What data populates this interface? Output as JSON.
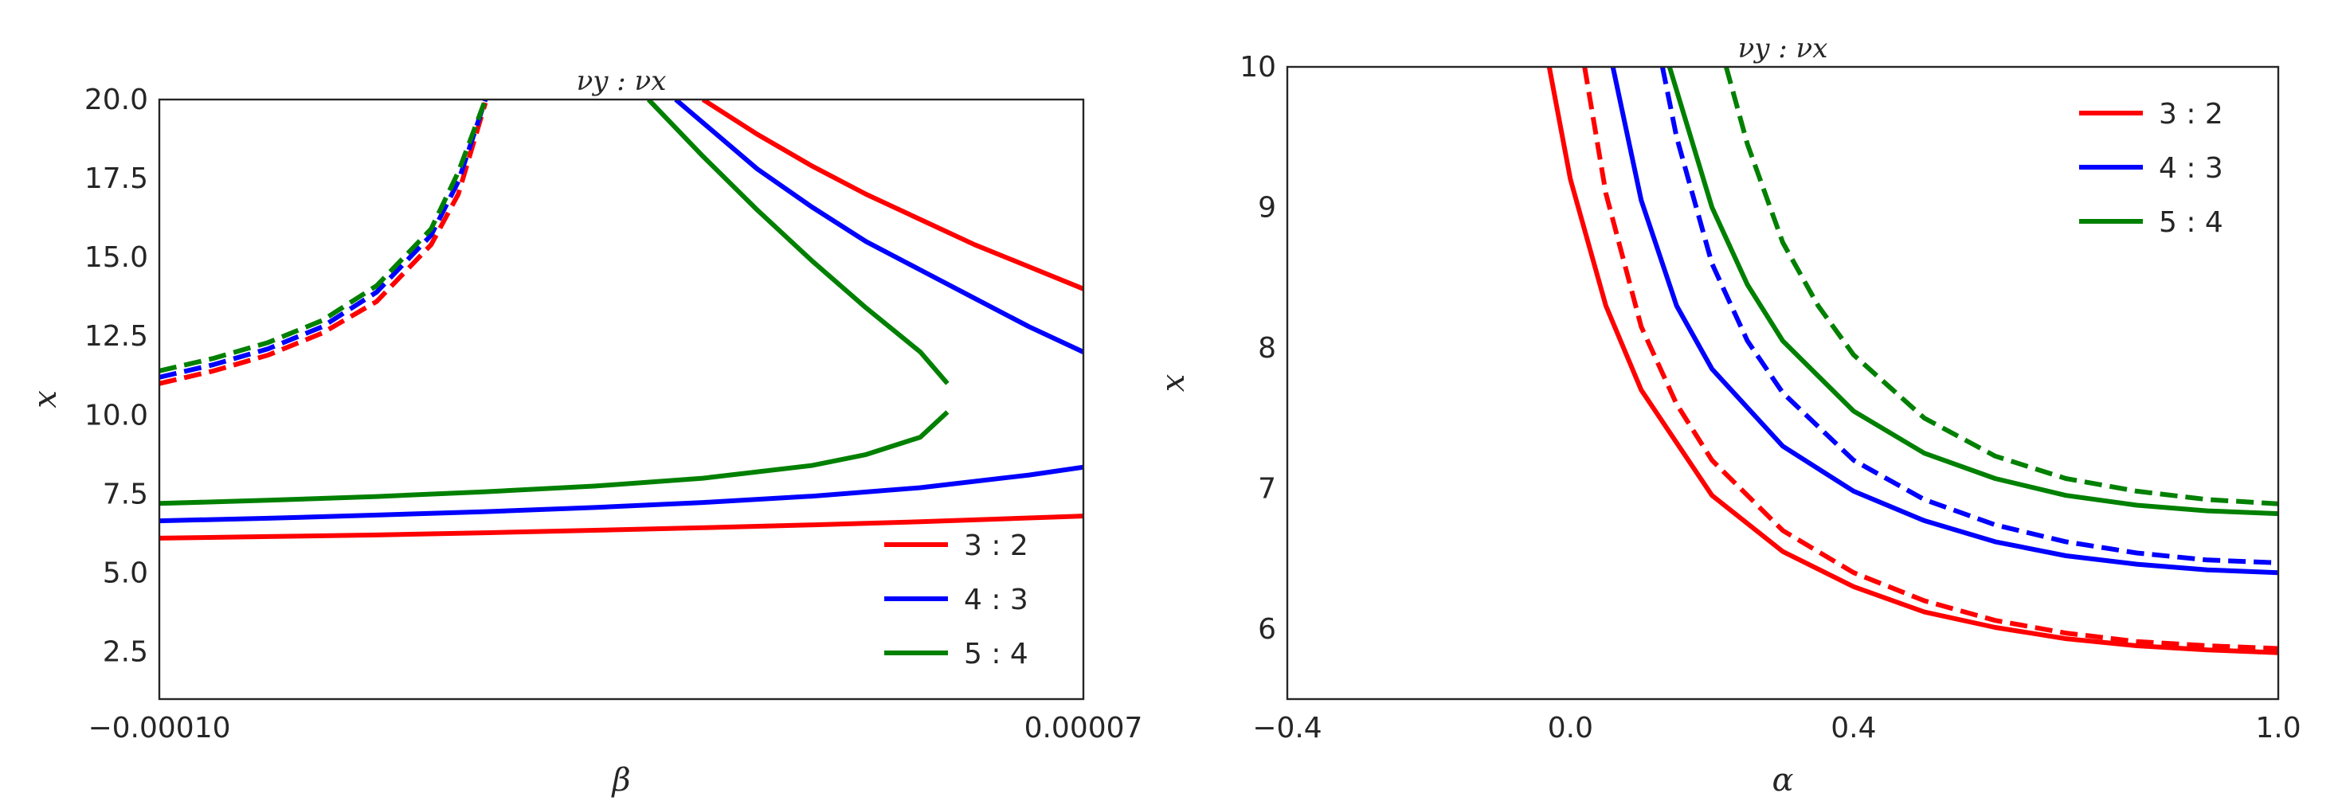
{
  "chart_data": [
    {
      "type": "line",
      "title": "νy : νx",
      "xlabel": "β",
      "ylabel": "x",
      "xlim": [
        -0.0001,
        7e-05
      ],
      "ylim": [
        1.0,
        20.0
      ],
      "xticks": [
        -0.0001,
        7e-05
      ],
      "xtick_labels": [
        "−0.00010",
        "0.00007"
      ],
      "yticks": [
        2.5,
        5.0,
        7.5,
        10.0,
        12.5,
        15.0,
        17.5,
        20.0
      ],
      "ytick_labels": [
        "2.5",
        "5.0",
        "7.5",
        "10.0",
        "12.5",
        "15.0",
        "17.5",
        "20.0"
      ],
      "legend": [
        "3 : 2",
        "4 : 3",
        "5 : 4"
      ],
      "legend_position": "lower-right",
      "grid": false,
      "series": [
        {
          "name": "3 : 2",
          "style": "solid",
          "color": "#ff0000",
          "x": [
            -0.0001,
            -8e-05,
            -6e-05,
            -4e-05,
            -2e-05,
            0.0,
            2e-05,
            4e-05,
            6e-05,
            7e-05
          ],
          "y": [
            6.1,
            6.15,
            6.2,
            6.27,
            6.35,
            6.43,
            6.52,
            6.62,
            6.74,
            6.8
          ]
        },
        {
          "name": "3 : 2",
          "style": "solid",
          "color": "#ff0000",
          "x": [
            0.0,
            1e-05,
            2e-05,
            3e-05,
            4e-05,
            5e-05,
            6e-05,
            7e-05
          ],
          "y": [
            20.0,
            18.9,
            17.9,
            17.0,
            16.2,
            15.4,
            14.7,
            14.0
          ]
        },
        {
          "name": "3 : 2",
          "style": "dashed",
          "color": "#ff0000",
          "x": [
            -0.0001,
            -9e-05,
            -8e-05,
            -7e-05,
            -6e-05,
            -5e-05,
            -4.5e-05,
            -4e-05
          ],
          "y": [
            11.0,
            11.4,
            11.9,
            12.6,
            13.6,
            15.4,
            17.0,
            19.9
          ]
        },
        {
          "name": "4 : 3",
          "style": "solid",
          "color": "#0000ff",
          "x": [
            -0.0001,
            -8e-05,
            -6e-05,
            -4e-05,
            -2e-05,
            0.0,
            2e-05,
            4e-05,
            6e-05,
            7e-05
          ],
          "y": [
            6.65,
            6.73,
            6.83,
            6.94,
            7.07,
            7.23,
            7.43,
            7.7,
            8.1,
            8.35
          ]
        },
        {
          "name": "4 : 3",
          "style": "solid",
          "color": "#0000ff",
          "x": [
            -5e-06,
            1e-05,
            2e-05,
            3e-05,
            4e-05,
            5e-05,
            6e-05,
            7e-05
          ],
          "y": [
            20.0,
            17.8,
            16.6,
            15.5,
            14.6,
            13.7,
            12.8,
            12.0
          ]
        },
        {
          "name": "4 : 3",
          "style": "dashed",
          "color": "#0000ff",
          "x": [
            -0.0001,
            -9e-05,
            -8e-05,
            -7e-05,
            -6e-05,
            -5e-05,
            -4.5e-05,
            -4e-05
          ],
          "y": [
            11.2,
            11.6,
            12.1,
            12.8,
            13.9,
            15.7,
            17.4,
            20.0
          ]
        },
        {
          "name": "5 : 4",
          "style": "solid",
          "color": "#008000",
          "x": [
            -0.0001,
            -8e-05,
            -6e-05,
            -4e-05,
            -2e-05,
            0.0,
            2e-05,
            3e-05,
            4e-05,
            4.5e-05
          ],
          "y": [
            7.2,
            7.3,
            7.42,
            7.57,
            7.75,
            8.0,
            8.4,
            8.75,
            9.3,
            10.1
          ]
        },
        {
          "name": "5 : 4",
          "style": "solid",
          "color": "#008000",
          "x": [
            4.5e-05,
            4e-05,
            3e-05,
            2e-05,
            1e-05,
            0.0,
            -1e-05
          ],
          "y": [
            11.0,
            12.0,
            13.4,
            14.9,
            16.5,
            18.2,
            20.0
          ]
        },
        {
          "name": "5 : 4",
          "style": "dashed",
          "color": "#008000",
          "x": [
            -0.0001,
            -9e-05,
            -8e-05,
            -7e-05,
            -6e-05,
            -5e-05,
            -4.5e-05,
            -4e-05
          ],
          "y": [
            11.4,
            11.8,
            12.3,
            13.0,
            14.1,
            15.9,
            17.7,
            20.0
          ]
        }
      ]
    },
    {
      "type": "line",
      "title": "νy : νx",
      "xlabel": "α",
      "ylabel": "x",
      "xlim": [
        -0.4,
        1.0
      ],
      "ylim": [
        5.5,
        10.0
      ],
      "xticks": [
        -0.4,
        0.0,
        0.4,
        1.0
      ],
      "xtick_labels": [
        "−0.4",
        "0.0",
        "0.4",
        "1.0"
      ],
      "yticks": [
        6,
        7,
        8,
        9,
        10
      ],
      "ytick_labels": [
        "6",
        "7",
        "8",
        "9",
        "10"
      ],
      "legend": [
        "3 : 2",
        "4 : 3",
        "5 : 4"
      ],
      "legend_position": "upper-right",
      "grid": false,
      "series": [
        {
          "name": "3 : 2",
          "style": "solid",
          "color": "#ff0000",
          "x": [
            -0.03,
            0.0,
            0.05,
            0.1,
            0.2,
            0.3,
            0.4,
            0.5,
            0.6,
            0.7,
            0.8,
            0.9,
            1.0
          ],
          "y": [
            10.0,
            9.2,
            8.3,
            7.7,
            6.95,
            6.55,
            6.3,
            6.12,
            6.01,
            5.93,
            5.88,
            5.85,
            5.83
          ]
        },
        {
          "name": "3 : 2",
          "style": "dashed",
          "color": "#ff0000",
          "x": [
            0.02,
            0.05,
            0.1,
            0.15,
            0.2,
            0.3,
            0.4,
            0.5,
            0.6,
            0.7,
            0.8,
            0.9,
            1.0
          ],
          "y": [
            10.0,
            9.1,
            8.15,
            7.6,
            7.2,
            6.7,
            6.4,
            6.2,
            6.06,
            5.97,
            5.91,
            5.88,
            5.86
          ]
        },
        {
          "name": "4 : 3",
          "style": "solid",
          "color": "#0000ff",
          "x": [
            0.06,
            0.1,
            0.15,
            0.2,
            0.3,
            0.4,
            0.5,
            0.6,
            0.7,
            0.8,
            0.9,
            1.0
          ],
          "y": [
            10.0,
            9.05,
            8.3,
            7.85,
            7.3,
            6.98,
            6.77,
            6.62,
            6.52,
            6.46,
            6.42,
            6.4
          ]
        },
        {
          "name": "4 : 3",
          "style": "dashed",
          "color": "#0000ff",
          "x": [
            0.13,
            0.15,
            0.2,
            0.25,
            0.3,
            0.4,
            0.5,
            0.6,
            0.7,
            0.8,
            0.9,
            1.0
          ],
          "y": [
            10.0,
            9.5,
            8.6,
            8.05,
            7.68,
            7.2,
            6.92,
            6.74,
            6.62,
            6.54,
            6.49,
            6.47
          ]
        },
        {
          "name": "5 : 4",
          "style": "solid",
          "color": "#008000",
          "x": [
            0.14,
            0.2,
            0.25,
            0.3,
            0.4,
            0.5,
            0.6,
            0.7,
            0.8,
            0.9,
            1.0
          ],
          "y": [
            10.0,
            9.0,
            8.45,
            8.05,
            7.55,
            7.25,
            7.07,
            6.95,
            6.88,
            6.84,
            6.82
          ]
        },
        {
          "name": "5 : 4",
          "style": "dashed",
          "color": "#008000",
          "x": [
            0.22,
            0.25,
            0.3,
            0.35,
            0.4,
            0.5,
            0.6,
            0.7,
            0.8,
            0.9,
            1.0
          ],
          "y": [
            10.0,
            9.45,
            8.75,
            8.3,
            7.95,
            7.5,
            7.23,
            7.07,
            6.98,
            6.92,
            6.89
          ]
        }
      ]
    }
  ]
}
